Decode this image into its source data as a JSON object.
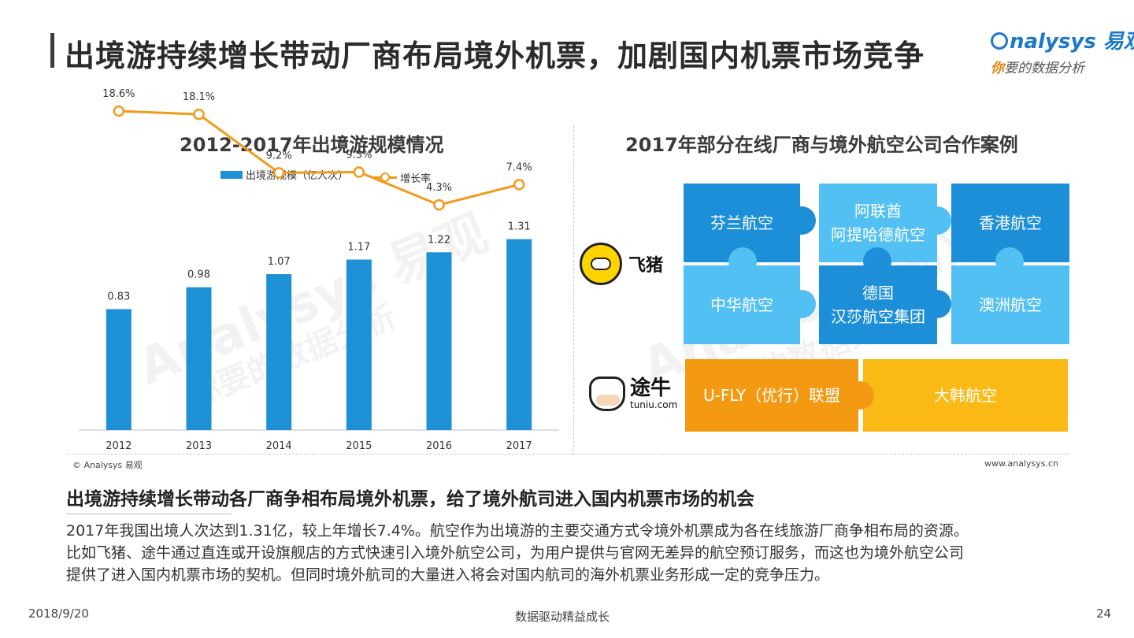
{
  "page_title": "出境游持续增长带动厂商布局境外机票，加剧国内机票市场竞争",
  "logo": {
    "brand_en": "nalysys",
    "brand_cn": "易观",
    "slogan_highlight": "你",
    "slogan_rest": "要的数据分析"
  },
  "watermark": {
    "en": "Analysys 易观",
    "cn": "你要的数据分析"
  },
  "chart_data": {
    "type": "bar",
    "title": "2012-2017年出境游规模情况",
    "categories": [
      "2012",
      "2013",
      "2014",
      "2015",
      "2016",
      "2017"
    ],
    "series": [
      {
        "name": "出境游规模（亿人次）",
        "type": "bar",
        "color": "#1e90d6",
        "values": [
          0.83,
          0.98,
          1.07,
          1.17,
          1.22,
          1.31
        ],
        "labels": [
          "0.83",
          "0.98",
          "1.07",
          "1.17",
          "1.22",
          "1.31"
        ]
      },
      {
        "name": "增长率",
        "type": "line",
        "color": "#f39a1b",
        "values": [
          18.6,
          18.1,
          9.2,
          9.3,
          4.3,
          7.4
        ],
        "labels": [
          "18.6%",
          "18.1%",
          "9.2%",
          "9.3%",
          "4.3%",
          "7.4%"
        ]
      }
    ],
    "ylim": [
      0,
      1.6
    ],
    "y2lim": [
      -30,
      30
    ],
    "legend_position": "top",
    "grid": false
  },
  "cooperation": {
    "title": "2017年部分在线厂商与境外航空公司合作案例",
    "feizhu": {
      "name": "飞猪",
      "airlines": [
        "芬兰航空",
        "阿联酋\n阿提哈德航空",
        "香港航空",
        "中华航空",
        "德国\n汉莎航空集团",
        "澳洲航空"
      ]
    },
    "tuniu": {
      "name_cn": "途牛",
      "name_en": "tuniu.com",
      "airlines": [
        "U-FLY（优行）联盟",
        "大韩航空"
      ]
    }
  },
  "footer": {
    "copyright": "© Analysys 易观",
    "website": "www.analysys.cn",
    "date": "2018/9/20",
    "slogan": "数据驱动精益成长",
    "page": "24"
  },
  "summary": {
    "heading": "出境游持续增长带动各厂商争相布局境外机票，给了境外航司进入国内机票市场的机会",
    "lines": [
      "2017年我国出境人次达到1.31亿，较上年增长7.4%。航空作为出境游的主要交通方式令境外机票成为各在线旅游厂商争相布局的资源。",
      "比如飞猪、途牛通过直连或开设旗舰店的方式快速引入境外航空公司，为用户提供与官网无差异的航空预订服务，而这也为境外航空公司",
      "提供了进入国内机票市场的契机。但同时境外航司的大量进入将会对国内航司的海外机票业务形成一定的竞争压力。"
    ]
  }
}
